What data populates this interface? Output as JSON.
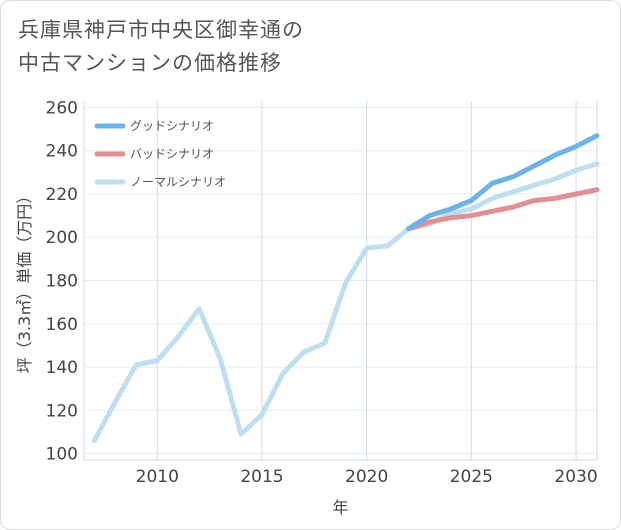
{
  "title_lines": [
    "兵庫県神戸市中央区御幸通の",
    "中古マンションの価格推移"
  ],
  "chart_data": {
    "type": "line",
    "title": "兵庫県神戸市中央区御幸通の中古マンションの価格推移",
    "xlabel": "年",
    "ylabel": "坪（3.3㎡）単価（万円）",
    "xlim": [
      2006.5,
      2031
    ],
    "ylim": [
      97,
      263
    ],
    "x_ticks": [
      2010,
      2015,
      2020,
      2025,
      2030
    ],
    "y_ticks": [
      100,
      120,
      140,
      160,
      180,
      200,
      220,
      240,
      260
    ],
    "legend_position": "top-left",
    "series": [
      {
        "name": "グッドシナリオ",
        "color": "#6cb4e8",
        "x": [
          2022,
          2023,
          2024,
          2025,
          2026,
          2027,
          2028,
          2029,
          2030,
          2031
        ],
        "values": [
          204,
          210,
          213,
          217,
          225,
          228,
          233,
          238,
          242,
          247
        ]
      },
      {
        "name": "バッドシナリオ",
        "color": "#e28f94",
        "x": [
          2022,
          2023,
          2024,
          2025,
          2026,
          2027,
          2028,
          2029,
          2030,
          2031
        ],
        "values": [
          204,
          207,
          209,
          210,
          212,
          214,
          217,
          218,
          220,
          222
        ]
      },
      {
        "name": "ノーマルシナリオ",
        "color": "#bfdff0",
        "x": [
          2007,
          2008,
          2009,
          2010,
          2011,
          2012,
          2013,
          2014,
          2015,
          2016,
          2017,
          2018,
          2019,
          2020,
          2021,
          2022,
          2023,
          2024,
          2025,
          2026,
          2027,
          2028,
          2029,
          2030,
          2031
        ],
        "values": [
          106,
          124,
          141,
          143,
          154,
          167,
          144,
          109,
          118,
          137,
          147,
          151,
          179,
          195,
          196,
          204,
          206,
          211,
          213,
          218,
          221,
          224,
          227,
          231,
          234
        ]
      }
    ]
  }
}
